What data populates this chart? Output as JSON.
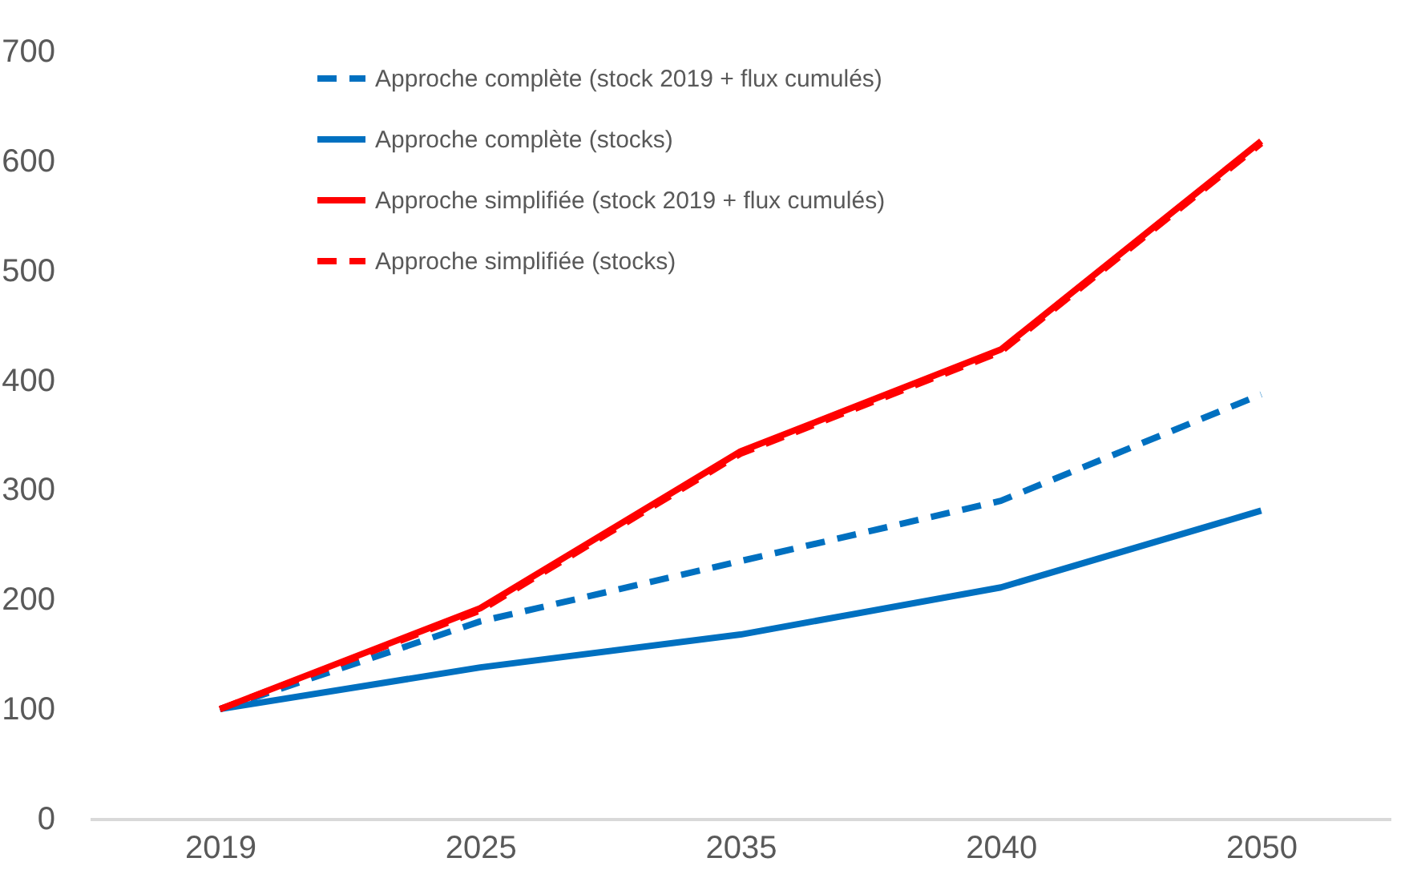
{
  "chart_data": {
    "type": "line",
    "categories": [
      "2019",
      "2025",
      "2035",
      "2040",
      "2050"
    ],
    "ylim": [
      0,
      700
    ],
    "yticks": [
      0,
      100,
      200,
      300,
      400,
      500,
      600,
      700
    ],
    "grid": false,
    "legend": "top left",
    "series": [
      {
        "name": "Approche complète (stock 2019 + flux cumulés)",
        "color": "#0070c0",
        "line_style": "dashed",
        "values": [
          100,
          180,
          235,
          290,
          387
        ]
      },
      {
        "name": "Approche complète (stocks)",
        "color": "#0070c0",
        "line_style": "solid",
        "values": [
          100,
          138,
          168,
          211,
          281
        ]
      },
      {
        "name": "Approche simplifiée (stock 2019 + flux cumulés)",
        "color": "#ff0000",
        "line_style": "solid",
        "values": [
          100,
          192,
          335,
          428,
          618
        ]
      },
      {
        "name": "Approche simplifiée (stocks)",
        "color": "#ff0000",
        "line_style": "dashed",
        "values": [
          100,
          190,
          333,
          426,
          616
        ]
      }
    ]
  }
}
